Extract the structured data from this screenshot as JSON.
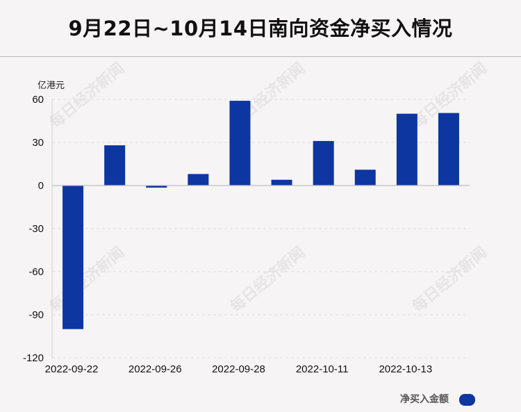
{
  "title": "9月22日~10月14日南向资金净买入情况",
  "watermark_text": "每日经济新闻",
  "colors": {
    "bar": "#0d36a0",
    "background": "#f7f4f6"
  },
  "chart_data": {
    "type": "bar",
    "title": "9月22日~10月14日南向资金净买入情况",
    "ylabel": "亿港元",
    "xlabel": "",
    "ylim": [
      -120,
      60
    ],
    "yticks": [
      60,
      30,
      0,
      -30,
      -60,
      -90,
      -120
    ],
    "grid": true,
    "legend_position": "bottom-right",
    "x_tick_labels": [
      "2022-09-22",
      "2022-09-26",
      "2022-09-28",
      "2022-10-11",
      "2022-10-13"
    ],
    "series": [
      {
        "name": "净买入金额",
        "values": [
          -100,
          28,
          -1.5,
          8,
          59,
          4,
          31,
          11,
          50,
          50.5
        ]
      }
    ]
  }
}
